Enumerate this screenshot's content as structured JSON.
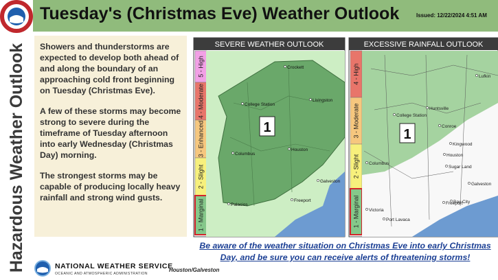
{
  "header": {
    "title": "Tuesday's (Christmas Eve) Weather Outlook",
    "issued": "Issued: 12/22/2024 4:51 AM"
  },
  "sidebar": {
    "title": "Hazardous Weather Outlook"
  },
  "body": {
    "paragraphs": [
      "Showers and thunderstorms are expected to develop both ahead of and along the boundary of an approaching cold front beginning on Tuesday (Christmas Eve).",
      "A few of these storms may become strong to severe during the timeframe of Tuesday afternoon into early Wednesday (Christmas Day) morning.",
      "The strongest storms may be capable of producing locally heavy rainfall and strong wind gusts."
    ]
  },
  "severe_panel": {
    "title": "SEVERE WEATHER OUTLOOK",
    "levels": [
      "5 - High",
      "4 - Moderate",
      "3 - Enhanced",
      "2 - Slight",
      "1 - Marginal"
    ],
    "risk": "1",
    "places": [
      "Crockett",
      "College Station",
      "Livingston",
      "Columbus",
      "Houston",
      "Galveston",
      "Palacios",
      "Freeport"
    ]
  },
  "rainfall_panel": {
    "title": "EXCESSIVE RAINFALL OUTLOOK",
    "levels": [
      "4 - High",
      "3 - Moderate",
      "2 - Slight",
      "1 - Marginal"
    ],
    "risk": "1",
    "places": [
      "Lufkin",
      "Huntsville",
      "College Station",
      "Conroe",
      "Kingwood",
      "Houston",
      "Sugar Land",
      "Columbus",
      "Galveston",
      "Bay City",
      "Freeport",
      "Victoria",
      "Port Lavaca"
    ]
  },
  "footer": {
    "message": "Be aware of the weather situation on Christmas Eve into early Christmas Day, and be sure you can receive alerts of threatening storms!",
    "agency": "NATIONAL WEATHER SERVICE",
    "subagency": "OCEANIC AND ATMOSPHERIC ADMINISTRATION",
    "office": "Houston/Galveston"
  }
}
